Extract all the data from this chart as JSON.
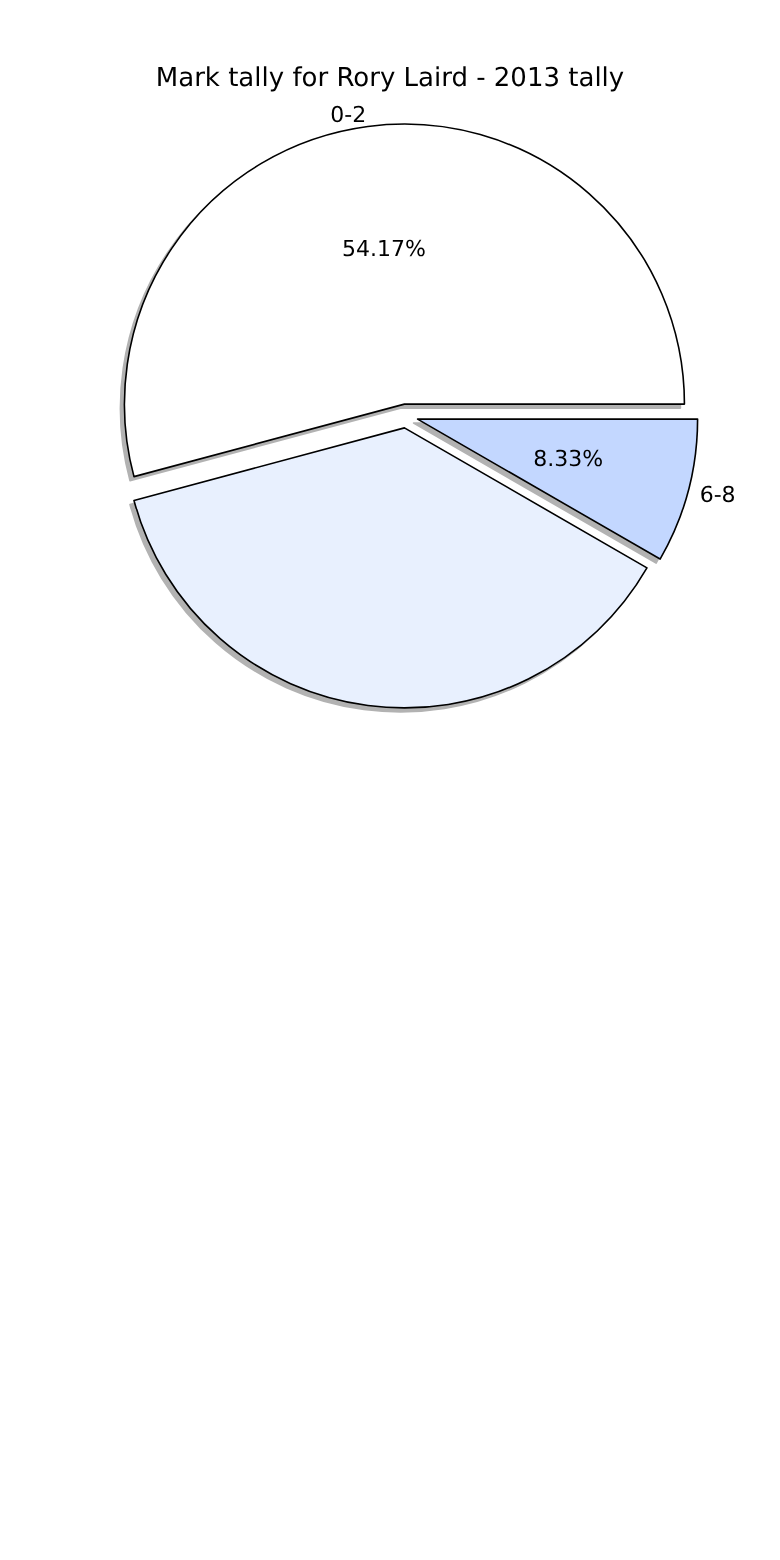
{
  "chart_data": {
    "type": "pie",
    "title": "Mark tally for Rory Laird - 2013 tally",
    "categories": [
      "0-2",
      null,
      "6-8"
    ],
    "values": [
      54.17,
      37.5,
      8.33
    ],
    "colors": [
      "#ffffff",
      "#e8f0fe",
      "#c3d7ff"
    ],
    "value_labels": [
      "54.17%",
      null,
      "8.33%"
    ],
    "legend": false
  }
}
